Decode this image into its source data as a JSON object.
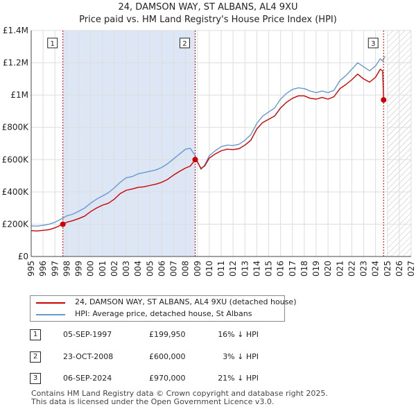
{
  "title_line1": "24, DAMSON WAY, ST ALBANS, AL4 9XU",
  "title_line2": "Price paid vs. HM Land Registry's House Price Index (HPI)",
  "colors": {
    "property": "#cc0000",
    "hpi": "#6699cc",
    "shade": "#dde6f5",
    "grid": "#dddddd",
    "marker_line": "#cc0000"
  },
  "chart_data": {
    "type": "line",
    "title": "Price paid vs. HM Land Registry's House Price Index (HPI)",
    "xlabel": "",
    "ylabel": "",
    "xlim": [
      1995,
      2027
    ],
    "ylim": [
      0,
      1400000
    ],
    "x_ticks": [
      "1995",
      "1996",
      "1997",
      "1998",
      "1999",
      "2000",
      "2001",
      "2002",
      "2003",
      "2004",
      "2005",
      "2006",
      "2007",
      "2008",
      "2009",
      "2010",
      "2011",
      "2012",
      "2013",
      "2014",
      "2015",
      "2016",
      "2017",
      "2018",
      "2019",
      "2020",
      "2021",
      "2022",
      "2023",
      "2024",
      "2025",
      "2026",
      "2027"
    ],
    "y_ticks": [
      {
        "value": 0,
        "label": "£0"
      },
      {
        "value": 200000,
        "label": "£200K"
      },
      {
        "value": 400000,
        "label": "£400K"
      },
      {
        "value": 600000,
        "label": "£600K"
      },
      {
        "value": 800000,
        "label": "£800K"
      },
      {
        "value": 1000000,
        "label": "£1M"
      },
      {
        "value": 1200000,
        "label": "£1.2M"
      },
      {
        "value": 1400000,
        "label": "£1.4M"
      }
    ],
    "shaded_range": [
      1997.67,
      2008.81
    ],
    "hatched_from": 2025.0,
    "series": [
      {
        "name": "24, DAMSON WAY, ST ALBANS, AL4 9XU (detached house)",
        "color": "#cc0000",
        "x": [
          1995.0,
          1995.5,
          1996.0,
          1996.5,
          1997.0,
          1997.67,
          1998.0,
          1998.5,
          1999.0,
          1999.5,
          2000.0,
          2000.5,
          2001.0,
          2001.5,
          2002.0,
          2002.5,
          2003.0,
          2003.5,
          2004.0,
          2004.5,
          2005.0,
          2005.5,
          2006.0,
          2006.5,
          2007.0,
          2007.5,
          2008.0,
          2008.4,
          2008.81,
          2009.0,
          2009.3,
          2009.6,
          2010.0,
          2010.5,
          2011.0,
          2011.5,
          2012.0,
          2012.5,
          2013.0,
          2013.5,
          2014.0,
          2014.5,
          2015.0,
          2015.5,
          2016.0,
          2016.5,
          2017.0,
          2017.5,
          2018.0,
          2018.5,
          2019.0,
          2019.5,
          2020.0,
          2020.5,
          2021.0,
          2021.5,
          2022.0,
          2022.5,
          2023.0,
          2023.5,
          2024.0,
          2024.4,
          2024.6,
          2024.68
        ],
        "values": [
          160000,
          158000,
          162000,
          166000,
          178000,
          199950,
          212000,
          222000,
          235000,
          250000,
          278000,
          300000,
          318000,
          330000,
          355000,
          390000,
          410000,
          418000,
          428000,
          432000,
          440000,
          448000,
          460000,
          478000,
          505000,
          528000,
          548000,
          560000,
          600000,
          585000,
          545000,
          560000,
          610000,
          635000,
          655000,
          665000,
          662000,
          668000,
          690000,
          720000,
          790000,
          830000,
          850000,
          870000,
          920000,
          955000,
          980000,
          995000,
          995000,
          980000,
          975000,
          985000,
          975000,
          990000,
          1040000,
          1065000,
          1095000,
          1130000,
          1100000,
          1080000,
          1110000,
          1160000,
          1150000,
          970000
        ]
      },
      {
        "name": "HPI: Average price, detached house, St Albans",
        "color": "#6699cc",
        "x": [
          1995.0,
          1995.5,
          1996.0,
          1996.5,
          1997.0,
          1997.67,
          1998.0,
          1998.5,
          1999.0,
          1999.5,
          2000.0,
          2000.5,
          2001.0,
          2001.5,
          2002.0,
          2002.5,
          2003.0,
          2003.5,
          2004.0,
          2004.5,
          2005.0,
          2005.5,
          2006.0,
          2006.5,
          2007.0,
          2007.5,
          2008.0,
          2008.4,
          2008.81,
          2009.0,
          2009.3,
          2009.6,
          2010.0,
          2010.5,
          2011.0,
          2011.5,
          2012.0,
          2012.5,
          2013.0,
          2013.5,
          2014.0,
          2014.5,
          2015.0,
          2015.5,
          2016.0,
          2016.5,
          2017.0,
          2017.5,
          2018.0,
          2018.5,
          2019.0,
          2019.5,
          2020.0,
          2020.5,
          2021.0,
          2021.5,
          2022.0,
          2022.5,
          2023.0,
          2023.5,
          2024.0,
          2024.4,
          2024.6,
          2024.68,
          2024.8
        ],
        "values": [
          190000,
          188000,
          193000,
          200000,
          212000,
          238000,
          252000,
          262000,
          280000,
          300000,
          330000,
          355000,
          375000,
          395000,
          425000,
          460000,
          488000,
          495000,
          512000,
          520000,
          528000,
          536000,
          552000,
          575000,
          605000,
          635000,
          665000,
          670000,
          625000,
          590000,
          540000,
          565000,
          625000,
          655000,
          680000,
          690000,
          688000,
          695000,
          720000,
          755000,
          825000,
          870000,
          895000,
          920000,
          975000,
          1010000,
          1035000,
          1045000,
          1040000,
          1025000,
          1015000,
          1025000,
          1015000,
          1030000,
          1090000,
          1120000,
          1160000,
          1200000,
          1175000,
          1150000,
          1180000,
          1225000,
          1210000,
          1225000,
          1240000
        ]
      }
    ],
    "sales": [
      {
        "num": "1",
        "x": 1997.67,
        "value": 199950
      },
      {
        "num": "2",
        "x": 2008.81,
        "value": 600000
      },
      {
        "num": "3",
        "x": 2024.68,
        "value": 970000
      }
    ]
  },
  "legend": {
    "property_label": "24, DAMSON WAY, ST ALBANS, AL4 9XU (detached house)",
    "hpi_label": "HPI: Average price, detached house, St Albans"
  },
  "transactions": [
    {
      "num": "1",
      "date": "05-SEP-1997",
      "price": "£199,950",
      "diff": "16% ↓ HPI"
    },
    {
      "num": "2",
      "date": "23-OCT-2008",
      "price": "£600,000",
      "diff": "3% ↓ HPI"
    },
    {
      "num": "3",
      "date": "06-SEP-2024",
      "price": "£970,000",
      "diff": "21% ↓ HPI"
    }
  ],
  "footer": {
    "line1": "Contains HM Land Registry data © Crown copyright and database right 2025.",
    "line2": "This data is licensed under the Open Government Licence v3.0."
  }
}
